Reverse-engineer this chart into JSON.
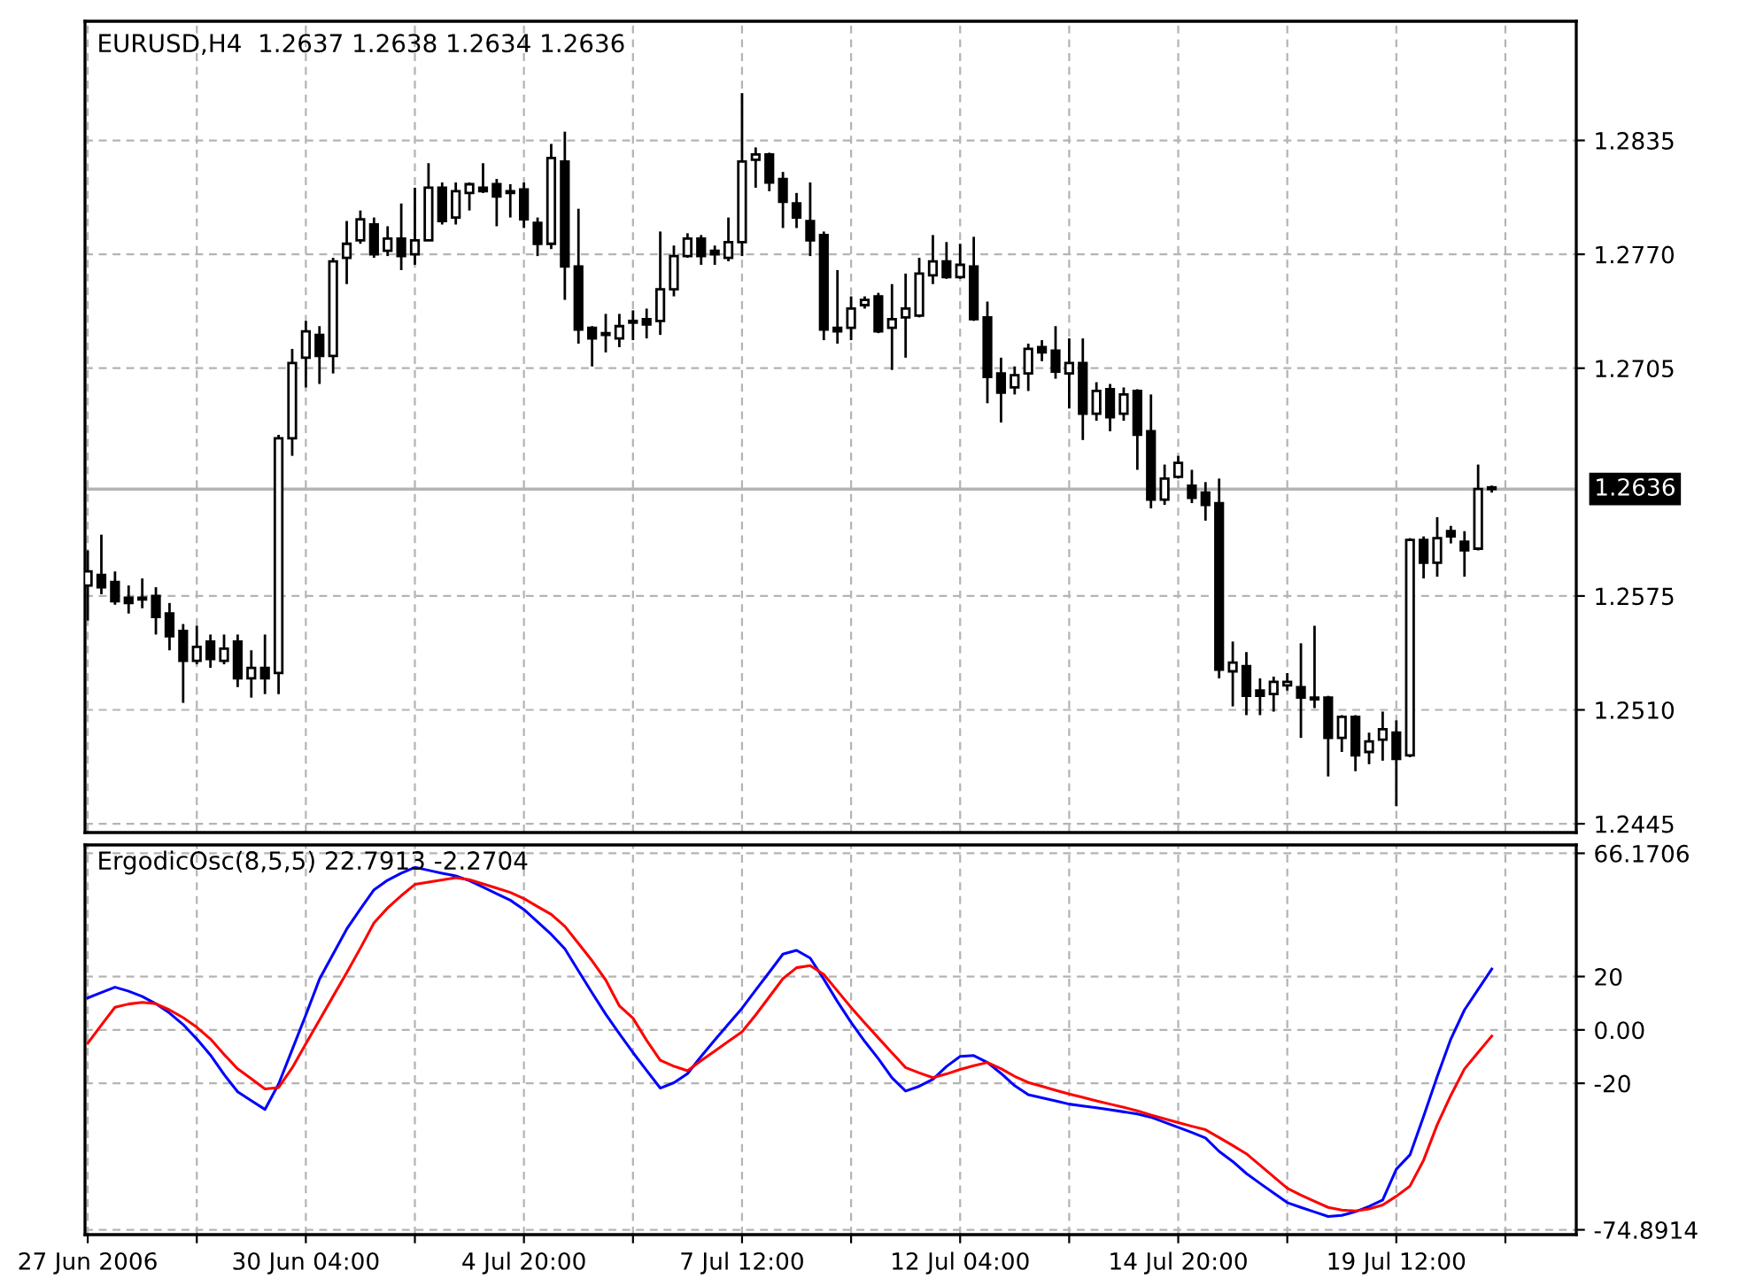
{
  "chart_data": [
    {
      "type": "candlestick",
      "title": "EURUSD,H4  1.2637 1.2638 1.2634 1.2636",
      "categories": [
        null,
        null,
        null,
        null,
        null,
        null,
        null,
        null,
        null,
        null,
        null,
        null,
        null,
        null,
        null,
        null,
        null,
        null,
        null,
        null,
        null,
        null,
        null,
        null,
        null,
        null,
        null,
        null,
        null,
        null,
        null,
        null,
        null,
        null,
        null,
        null,
        null,
        null,
        null,
        null,
        null,
        null,
        null,
        null,
        null,
        null,
        null,
        null,
        null,
        null,
        null,
        null,
        null,
        null,
        null,
        null,
        null,
        null,
        null,
        null,
        null,
        null,
        null,
        null,
        null,
        null,
        null,
        null,
        null,
        null,
        null,
        null,
        null,
        null,
        null,
        null,
        null,
        null,
        null,
        null,
        null,
        null,
        null,
        null,
        null,
        null,
        null,
        null,
        null,
        null,
        null,
        null,
        null,
        null,
        null,
        null,
        null,
        null,
        null,
        null,
        null,
        null,
        null,
        null
      ],
      "ohlc": [
        [
          1.2581,
          1.2601,
          1.2561,
          1.2589
        ],
        [
          1.2587,
          1.261,
          1.2576,
          1.258
        ],
        [
          1.2583,
          1.2589,
          1.257,
          1.2572
        ],
        [
          1.2574,
          1.2581,
          1.2565,
          1.2571
        ],
        [
          1.2574,
          1.2585,
          1.2568,
          1.2573
        ],
        [
          1.2575,
          1.258,
          1.2553,
          1.2563
        ],
        [
          1.2565,
          1.2571,
          1.2544,
          1.2552
        ],
        [
          1.2555,
          1.2559,
          1.2514,
          1.2538
        ],
        [
          1.2538,
          1.2558,
          1.2536,
          1.2546
        ],
        [
          1.2549,
          1.2553,
          1.2534,
          1.2539
        ],
        [
          1.2538,
          1.2553,
          1.2536,
          1.2545
        ],
        [
          1.2549,
          1.2553,
          1.2523,
          1.2528
        ],
        [
          1.2528,
          1.2544,
          1.2517,
          1.2534
        ],
        [
          1.2534,
          1.2553,
          1.2519,
          1.2528
        ],
        [
          1.2531,
          1.2667,
          1.2519,
          1.2665
        ],
        [
          1.2665,
          1.2716,
          1.2655,
          1.2708
        ],
        [
          1.2711,
          1.2732,
          1.2694,
          1.2726
        ],
        [
          1.2724,
          1.2729,
          1.2696,
          1.2712
        ],
        [
          1.2712,
          1.2768,
          1.2702,
          1.2766
        ],
        [
          1.2768,
          1.2789,
          1.2753,
          1.2776
        ],
        [
          1.2778,
          1.2795,
          1.2776,
          1.279
        ],
        [
          1.2787,
          1.2791,
          1.2768,
          1.277
        ],
        [
          1.2772,
          1.2786,
          1.2769,
          1.2779
        ],
        [
          1.2779,
          1.2799,
          1.2761,
          1.2769
        ],
        [
          1.277,
          1.2808,
          1.2764,
          1.2778
        ],
        [
          1.2778,
          1.2822,
          1.2778,
          1.2808
        ],
        [
          1.2808,
          1.2811,
          1.2787,
          1.2789
        ],
        [
          1.2791,
          1.2811,
          1.2787,
          1.2806
        ],
        [
          1.2805,
          1.2811,
          1.2795,
          1.281
        ],
        [
          1.2808,
          1.2822,
          1.2805,
          1.2806
        ],
        [
          1.281,
          1.2813,
          1.2786,
          1.2803
        ],
        [
          1.2806,
          1.281,
          1.2791,
          1.2805
        ],
        [
          1.2807,
          1.2811,
          1.2785,
          1.279
        ],
        [
          1.2788,
          1.2791,
          1.2769,
          1.2776
        ],
        [
          1.2776,
          1.2833,
          1.2773,
          1.2825
        ],
        [
          1.2823,
          1.284,
          1.2744,
          1.2763
        ],
        [
          1.2763,
          1.2796,
          1.2719,
          1.2727
        ],
        [
          1.2728,
          1.2729,
          1.2706,
          1.2722
        ],
        [
          1.2724,
          1.2736,
          1.2714,
          1.2725
        ],
        [
          1.2722,
          1.2736,
          1.2717,
          1.2729
        ],
        [
          1.2731,
          1.2738,
          1.2721,
          1.2732
        ],
        [
          1.2733,
          1.2739,
          1.2722,
          1.273
        ],
        [
          1.2732,
          1.2783,
          1.2724,
          1.275
        ],
        [
          1.275,
          1.2775,
          1.2746,
          1.2769
        ],
        [
          1.2769,
          1.2782,
          1.2768,
          1.2779
        ],
        [
          1.2779,
          1.2781,
          1.2764,
          1.2769
        ],
        [
          1.2772,
          1.2775,
          1.2764,
          1.277
        ],
        [
          1.2768,
          1.2791,
          1.2766,
          1.2777
        ],
        [
          1.2777,
          1.2862,
          1.2769,
          1.2823
        ],
        [
          1.2824,
          1.2831,
          1.2808,
          1.2827
        ],
        [
          1.2827,
          1.2828,
          1.2806,
          1.2811
        ],
        [
          1.2813,
          1.2817,
          1.2785,
          1.28
        ],
        [
          1.2799,
          1.2805,
          1.2785,
          1.2791
        ],
        [
          1.2789,
          1.2811,
          1.2769,
          1.2778
        ],
        [
          1.2781,
          1.2783,
          1.2721,
          1.2727
        ],
        [
          1.2728,
          1.2761,
          1.2719,
          1.2726
        ],
        [
          1.2728,
          1.2746,
          1.2721,
          1.2739
        ],
        [
          1.2741,
          1.2746,
          1.2739,
          1.2744
        ],
        [
          1.2746,
          1.2748,
          1.2725,
          1.2726
        ],
        [
          1.2728,
          1.2753,
          1.2704,
          1.2733
        ],
        [
          1.2734,
          1.2759,
          1.2711,
          1.2739
        ],
        [
          1.2735,
          1.2768,
          1.2734,
          1.2759
        ],
        [
          1.2758,
          1.2781,
          1.2753,
          1.2766
        ],
        [
          1.2766,
          1.2777,
          1.2756,
          1.2757
        ],
        [
          1.2757,
          1.2776,
          1.2756,
          1.2764
        ],
        [
          1.2763,
          1.278,
          1.2732,
          1.2733
        ],
        [
          1.2734,
          1.2743,
          1.2685,
          1.27
        ],
        [
          1.2702,
          1.2711,
          1.2674,
          1.2691
        ],
        [
          1.2694,
          1.2706,
          1.269,
          1.2701
        ],
        [
          1.2702,
          1.2719,
          1.2692,
          1.2716
        ],
        [
          1.2717,
          1.2721,
          1.2709,
          1.2714
        ],
        [
          1.2715,
          1.2729,
          1.2699,
          1.2703
        ],
        [
          1.2702,
          1.2722,
          1.2682,
          1.2708
        ],
        [
          1.2708,
          1.2722,
          1.2664,
          1.2679
        ],
        [
          1.2679,
          1.2697,
          1.2675,
          1.2692
        ],
        [
          1.2693,
          1.2696,
          1.2669,
          1.2677
        ],
        [
          1.2679,
          1.2694,
          1.2675,
          1.269
        ],
        [
          1.2692,
          1.2693,
          1.2647,
          1.2667
        ],
        [
          1.2669,
          1.269,
          1.2625,
          1.263
        ],
        [
          1.263,
          1.265,
          1.2627,
          1.2642
        ],
        [
          1.2643,
          1.2655,
          1.2642,
          1.2651
        ],
        [
          1.2638,
          1.2647,
          1.2628,
          1.2631
        ],
        [
          1.2634,
          1.264,
          1.2618,
          1.2627
        ],
        [
          1.2628,
          1.2642,
          1.2528,
          1.2533
        ],
        [
          1.2532,
          1.2549,
          1.2512,
          1.2537
        ],
        [
          1.2535,
          1.2543,
          1.2507,
          1.2518
        ],
        [
          1.2521,
          1.2528,
          1.2507,
          1.2518
        ],
        [
          1.2519,
          1.2529,
          1.2509,
          1.2526
        ],
        [
          1.2524,
          1.2531,
          1.2521,
          1.2526
        ],
        [
          1.2523,
          1.2548,
          1.2494,
          1.2517
        ],
        [
          1.2517,
          1.2558,
          1.2511,
          1.2516
        ],
        [
          1.2517,
          1.2518,
          1.2472,
          1.2494
        ],
        [
          1.2494,
          1.2507,
          1.2486,
          1.2506
        ],
        [
          1.2506,
          1.2507,
          1.2475,
          1.2484
        ],
        [
          1.2486,
          1.2497,
          1.2479,
          1.2492
        ],
        [
          1.2493,
          1.2509,
          1.2481,
          1.2499
        ],
        [
          1.2497,
          1.2504,
          1.2455,
          1.2482
        ],
        [
          1.2484,
          1.2608,
          1.2483,
          1.2607
        ],
        [
          1.2607,
          1.2609,
          1.2585,
          1.2594
        ],
        [
          1.2594,
          1.262,
          1.2586,
          1.2608
        ],
        [
          1.2612,
          1.2615,
          1.2605,
          1.2609
        ],
        [
          1.2606,
          1.2612,
          1.2586,
          1.2601
        ],
        [
          1.2602,
          1.265,
          1.2601,
          1.2636
        ],
        [
          1.2637,
          1.2638,
          1.2634,
          1.2636
        ]
      ],
      "ylim": [
        1.244,
        1.2903
      ],
      "yticks": [
        1.2445,
        {
          "value": 1.251,
          "label": "1.2510"
        },
        1.2575,
        1.2705,
        {
          "value": 1.277,
          "label": "1.2770"
        },
        1.2835
      ],
      "grid": true,
      "tick_labels": "y",
      "ref_lines": [
        {
          "axis": "y",
          "value": 1.2636,
          "label": "1.2636",
          "color": "#b4b4b4"
        }
      ]
    },
    {
      "type": "line",
      "title": "ErgodicOsc(8,5,5) 22.7913 -2.2704",
      "categories": [
        "27 Jun 2006",
        null,
        null,
        null,
        null,
        null,
        null,
        null,
        null,
        null,
        null,
        null,
        null,
        null,
        null,
        null,
        "30 Jun 04:00",
        null,
        null,
        null,
        null,
        null,
        null,
        null,
        null,
        null,
        null,
        null,
        null,
        null,
        null,
        null,
        "4 Jul 20:00",
        null,
        null,
        null,
        null,
        null,
        null,
        null,
        null,
        null,
        null,
        null,
        null,
        null,
        null,
        null,
        "7 Jul 12:00",
        null,
        null,
        null,
        null,
        null,
        null,
        null,
        null,
        null,
        null,
        null,
        null,
        null,
        null,
        null,
        "12 Jul 04:00",
        null,
        null,
        null,
        null,
        null,
        null,
        null,
        null,
        null,
        null,
        null,
        null,
        null,
        null,
        null,
        "14 Jul 20:00",
        null,
        null,
        null,
        null,
        null,
        null,
        null,
        null,
        null,
        null,
        null,
        null,
        null,
        null,
        null,
        "19 Jul 12:00",
        null,
        null,
        null,
        null,
        null,
        null,
        null
      ],
      "series": [
        {
          "color": "#0000ff",
          "values": [
            12,
            14,
            16,
            14.5,
            12.5,
            9.8,
            6.3,
            2,
            -3.4,
            -9.4,
            -16.7,
            -23.2,
            -26.5,
            -29.8,
            -20.3,
            -7.4,
            5.6,
            19,
            28.4,
            37.8,
            45.3,
            52.5,
            56.1,
            58.7,
            60.9,
            59.8,
            58.7,
            57.7,
            55.9,
            53.5,
            51,
            48.6,
            45.1,
            40.5,
            35.8,
            30.4,
            22.1,
            13.9,
            5.9,
            -1.4,
            -8.5,
            -15.2,
            -21.8,
            -19.8,
            -16.4,
            -9.9,
            -3.8,
            2.2,
            8.1,
            14.9,
            21.6,
            28.4,
            29.8,
            26.9,
            19,
            10.6,
            2.8,
            -4.3,
            -10.8,
            -17.9,
            -22.9,
            -21.1,
            -18.5,
            -13.7,
            -9.9,
            -9.6,
            -12.2,
            -16.3,
            -20.9,
            -24.3,
            -25.4,
            -26.6,
            -27.8,
            -28.5,
            -29.2,
            -29.9,
            -30.7,
            -31.5,
            -32.7,
            -34.6,
            -36.5,
            -38.4,
            -40.5,
            -45.5,
            -49.3,
            -53.8,
            -57.5,
            -61.1,
            -64.7,
            -66.5,
            -68.2,
            -69.9,
            -69.5,
            -68.1,
            -66.1,
            -63.7,
            -52.2,
            -46.8,
            -32.4,
            -17.5,
            -3.4,
            7.5,
            15.2,
            22.8
          ]
        },
        {
          "color": "#ff0000",
          "values": [
            -5,
            1.8,
            8.5,
            9.7,
            10.3,
            9.8,
            7.5,
            4.6,
            1,
            -3.4,
            -9.2,
            -14.6,
            -18.3,
            -22.1,
            -21.6,
            -14.2,
            -5.2,
            3.7,
            12.6,
            21.4,
            30.6,
            40.1,
            45.7,
            50.3,
            54.5,
            55.4,
            56.2,
            57,
            56.3,
            54.7,
            53.1,
            51.5,
            49.2,
            46.2,
            43.3,
            38.8,
            32.4,
            25.9,
            18.7,
            9,
            4.4,
            -3.9,
            -11.4,
            -13.6,
            -15.3,
            -11.5,
            -7.9,
            -4.3,
            -0.7,
            5.6,
            12.4,
            19.2,
            23.3,
            24.1,
            20.8,
            14.6,
            8.4,
            2.6,
            -3,
            -8.6,
            -14.1,
            -16.1,
            -17.9,
            -16.5,
            -14.8,
            -13.4,
            -12.2,
            -14.5,
            -17.4,
            -19.7,
            -21.1,
            -22.6,
            -24,
            -25.3,
            -26.6,
            -27.8,
            -29,
            -30.3,
            -31.9,
            -33.3,
            -34.7,
            -36.1,
            -37.4,
            -40.3,
            -43.3,
            -46.4,
            -50.7,
            -55,
            -59.3,
            -61.9,
            -64.2,
            -66.5,
            -67.5,
            -67.8,
            -67.1,
            -65.6,
            -62.3,
            -58.5,
            -48.8,
            -35.5,
            -24.5,
            -14.6,
            -8.4,
            -2.3
          ]
        }
      ],
      "ylim": [
        -76.7,
        69.3
      ],
      "yticks": [
        -74.8914,
        -20,
        {
          "value": 0,
          "label": "0.00"
        },
        20,
        66.1706
      ],
      "grid": true,
      "line_style": "solid"
    }
  ]
}
